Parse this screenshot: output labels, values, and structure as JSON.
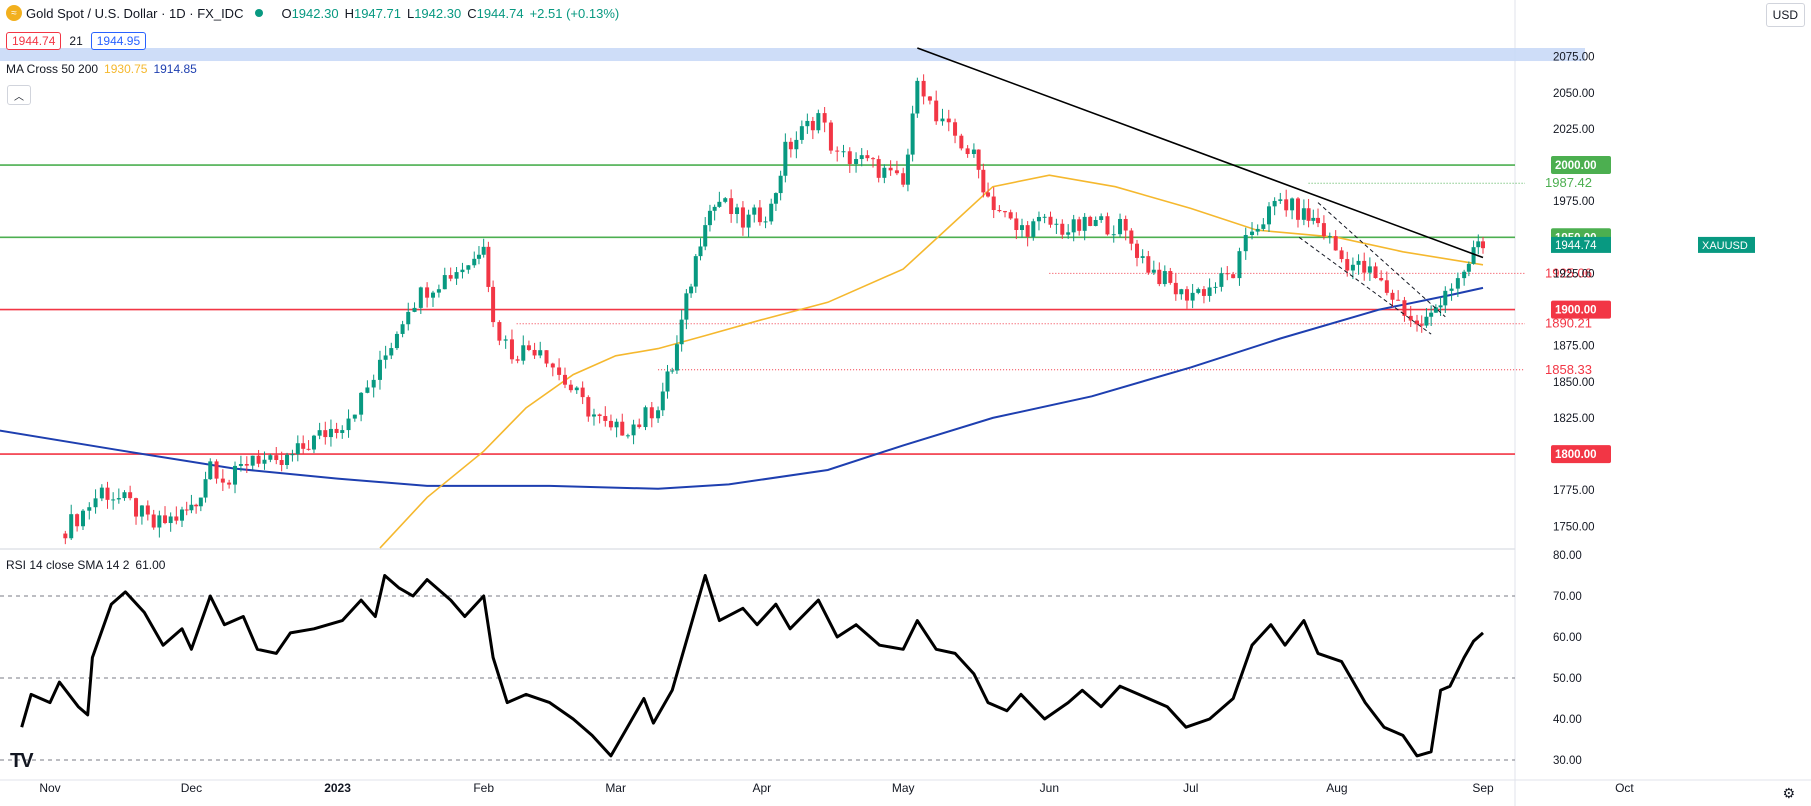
{
  "header": {
    "symbol_title": "Gold Spot / U.S. Dollar · 1D · FX_IDC",
    "ohlc": [
      {
        "label": "O",
        "value": "1942.30"
      },
      {
        "label": "H",
        "value": "1947.71"
      },
      {
        "label": "L",
        "value": "1942.30"
      },
      {
        "label": "C",
        "value": "1944.74"
      }
    ],
    "change": "+2.51 (+0.13%)",
    "bid": "1944.74",
    "spread": "21",
    "ask": "1944.95",
    "ma_label": "MA Cross 50 200",
    "ma50_value": "1930.75",
    "ma200_value": "1914.85",
    "currency_button": "USD",
    "collapse_icon": "chevron-up-icon",
    "settings_icon": "gear-icon",
    "logo_text": "TV"
  },
  "colors": {
    "up": "#089981",
    "down": "#f23645",
    "ma50": "#f5b82e",
    "ma200": "#1e3fb0",
    "resistance_green": "#4caf50",
    "support_red": "#f23645",
    "trendline": "#000000",
    "zone": "#c9d9f7",
    "rsi": "#000000"
  },
  "chart_data": [
    {
      "type": "candlestick",
      "title": "Gold Spot / U.S. Dollar · 1D · FX_IDC",
      "ylim": [
        1735,
        2090
      ],
      "y_ticks": [
        "2075.00",
        "2050.00",
        "2025.00",
        "2000.00",
        "1975.00",
        "1950.00",
        "1925.00",
        "1900.00",
        "1875.00",
        "1850.00",
        "1825.00",
        "1800.00",
        "1775.00",
        "1750.00"
      ],
      "x_ticks": [
        "Nov",
        "Dec",
        "2023",
        "Feb",
        "Mar",
        "Apr",
        "May",
        "Jun",
        "Jul",
        "Aug",
        "Sep",
        "Oct"
      ],
      "last_price_label": "XAUUSD",
      "last_price": "1944.74",
      "horizontal_levels": [
        {
          "value": "2000.00",
          "color": "#4caf50"
        },
        {
          "value": "1950.00",
          "color": "#4caf50"
        },
        {
          "value": "1900.00",
          "color": "#f23645"
        },
        {
          "value": "1800.00",
          "color": "#f23645"
        }
      ],
      "annotation_levels": [
        {
          "value": "1987.42",
          "color": "#4caf50"
        },
        {
          "value": "1925.06",
          "color": "#f23645"
        },
        {
          "value": "1890.21",
          "color": "#f23645"
        },
        {
          "value": "1858.33",
          "color": "#f23645"
        }
      ],
      "zone": {
        "low": 2072,
        "high": 2081
      },
      "trendline": [
        {
          "date": "2023-05-04",
          "price": 2081
        },
        {
          "date": "2023-09-01",
          "price": 1936
        }
      ],
      "channel_upper": [
        {
          "date": "2023-07-28",
          "price": 1974
        },
        {
          "date": "2023-08-24",
          "price": 1895
        }
      ],
      "channel_lower": [
        {
          "date": "2023-07-24",
          "price": 1950
        },
        {
          "date": "2023-08-21",
          "price": 1883
        }
      ],
      "ma50": [
        [
          "2023-01-10",
          1735
        ],
        [
          "2023-01-20",
          1770
        ],
        [
          "2023-02-01",
          1802
        ],
        [
          "2023-02-10",
          1832
        ],
        [
          "2023-02-20",
          1855
        ],
        [
          "2023-03-01",
          1868
        ],
        [
          "2023-03-10",
          1873
        ],
        [
          "2023-03-20",
          1882
        ],
        [
          "2023-04-01",
          1893
        ],
        [
          "2023-04-15",
          1905
        ],
        [
          "2023-05-01",
          1928
        ],
        [
          "2023-05-10",
          1955
        ],
        [
          "2023-05-20",
          1985
        ],
        [
          "2023-06-01",
          1993
        ],
        [
          "2023-06-15",
          1985
        ],
        [
          "2023-07-01",
          1970
        ],
        [
          "2023-07-15",
          1955
        ],
        [
          "2023-08-01",
          1950
        ],
        [
          "2023-08-15",
          1940
        ],
        [
          "2023-09-01",
          1931
        ]
      ],
      "ma200": [
        [
          "2022-10-20",
          1817
        ],
        [
          "2022-11-15",
          1803
        ],
        [
          "2022-12-10",
          1790
        ],
        [
          "2023-01-01",
          1783
        ],
        [
          "2023-01-20",
          1778
        ],
        [
          "2023-02-15",
          1778
        ],
        [
          "2023-03-10",
          1776
        ],
        [
          "2023-03-25",
          1779
        ],
        [
          "2023-04-15",
          1789
        ],
        [
          "2023-05-01",
          1806
        ],
        [
          "2023-05-20",
          1825
        ],
        [
          "2023-06-10",
          1840
        ],
        [
          "2023-07-01",
          1860
        ],
        [
          "2023-07-20",
          1880
        ],
        [
          "2023-08-10",
          1900
        ],
        [
          "2023-08-25",
          1910
        ],
        [
          "2023-09-01",
          1915
        ]
      ],
      "price_path": [
        [
          "2022-11-03",
          1745
        ],
        [
          "2022-11-08",
          1760
        ],
        [
          "2022-11-12",
          1775
        ],
        [
          "2022-11-18",
          1765
        ],
        [
          "2022-11-23",
          1750
        ],
        [
          "2022-11-29",
          1758
        ],
        [
          "2022-12-02",
          1765
        ],
        [
          "2022-12-05",
          1795
        ],
        [
          "2022-12-09",
          1780
        ],
        [
          "2022-12-14",
          1800
        ],
        [
          "2022-12-19",
          1790
        ],
        [
          "2022-12-27",
          1810
        ],
        [
          "2023-01-02",
          1822
        ],
        [
          "2023-01-06",
          1838
        ],
        [
          "2023-01-10",
          1860
        ],
        [
          "2023-01-16",
          1903
        ],
        [
          "2023-01-20",
          1915
        ],
        [
          "2023-01-25",
          1925
        ],
        [
          "2023-01-30",
          1935
        ],
        [
          "2023-02-01",
          1950
        ],
        [
          "2023-02-03",
          1890
        ],
        [
          "2023-02-07",
          1870
        ],
        [
          "2023-02-13",
          1875
        ],
        [
          "2023-02-17",
          1855
        ],
        [
          "2023-02-22",
          1835
        ],
        [
          "2023-02-28",
          1815
        ],
        [
          "2023-03-06",
          1822
        ],
        [
          "2023-03-10",
          1835
        ],
        [
          "2023-03-13",
          1860
        ],
        [
          "2023-03-15",
          1890
        ],
        [
          "2023-03-17",
          1920
        ],
        [
          "2023-03-20",
          1965
        ],
        [
          "2023-03-23",
          1975
        ],
        [
          "2023-03-28",
          1960
        ],
        [
          "2023-04-03",
          1970
        ],
        [
          "2023-04-06",
          2010
        ],
        [
          "2023-04-13",
          2035
        ],
        [
          "2023-04-17",
          2005
        ],
        [
          "2023-04-21",
          2005
        ],
        [
          "2023-04-27",
          1995
        ],
        [
          "2023-05-01",
          1985
        ],
        [
          "2023-05-03",
          2030
        ],
        [
          "2023-05-04",
          2065
        ],
        [
          "2023-05-08",
          2030
        ],
        [
          "2023-05-12",
          2020
        ],
        [
          "2023-05-16",
          2005
        ],
        [
          "2023-05-19",
          1978
        ],
        [
          "2023-05-25",
          1955
        ],
        [
          "2023-05-31",
          1960
        ],
        [
          "2023-06-05",
          1955
        ],
        [
          "2023-06-12",
          1960
        ],
        [
          "2023-06-16",
          1957
        ],
        [
          "2023-06-22",
          1930
        ],
        [
          "2023-06-29",
          1910
        ],
        [
          "2023-07-05",
          1915
        ],
        [
          "2023-07-10",
          1925
        ],
        [
          "2023-07-14",
          1955
        ],
        [
          "2023-07-20",
          1975
        ],
        [
          "2023-07-25",
          1965
        ],
        [
          "2023-07-28",
          1960
        ],
        [
          "2023-08-02",
          1935
        ],
        [
          "2023-08-08",
          1925
        ],
        [
          "2023-08-14",
          1905
        ],
        [
          "2023-08-18",
          1888
        ],
        [
          "2023-08-21",
          1895
        ],
        [
          "2023-08-24",
          1915
        ],
        [
          "2023-08-28",
          1920
        ],
        [
          "2023-08-30",
          1942
        ],
        [
          "2023-09-01",
          1945
        ]
      ]
    },
    {
      "type": "line",
      "title": "RSI 14 close SMA 14 2",
      "value_label": "61.00",
      "ylim": [
        25,
        80
      ],
      "y_ticks": [
        "80.00",
        "70.00",
        "60.00",
        "50.00",
        "40.00",
        "30.00"
      ],
      "dashed_levels": [
        70,
        50,
        30
      ],
      "series": [
        {
          "values": [
            [
              "2022-10-26",
              38
            ],
            [
              "2022-10-28",
              46
            ],
            [
              "2022-11-01",
              44
            ],
            [
              "2022-11-03",
              49
            ],
            [
              "2022-11-07",
              43
            ],
            [
              "2022-11-09",
              41
            ],
            [
              "2022-11-10",
              55
            ],
            [
              "2022-11-14",
              68
            ],
            [
              "2022-11-17",
              71
            ],
            [
              "2022-11-21",
              66
            ],
            [
              "2022-11-25",
              58
            ],
            [
              "2022-11-29",
              62
            ],
            [
              "2022-12-01",
              57
            ],
            [
              "2022-12-05",
              70
            ],
            [
              "2022-12-08",
              63
            ],
            [
              "2022-12-12",
              65
            ],
            [
              "2022-12-15",
              57
            ],
            [
              "2022-12-19",
              56
            ],
            [
              "2022-12-22",
              61
            ],
            [
              "2022-12-27",
              62
            ],
            [
              "2023-01-02",
              64
            ],
            [
              "2023-01-06",
              69
            ],
            [
              "2023-01-09",
              65
            ],
            [
              "2023-01-11",
              75
            ],
            [
              "2023-01-14",
              72
            ],
            [
              "2023-01-17",
              70
            ],
            [
              "2023-01-20",
              74
            ],
            [
              "2023-01-25",
              69
            ],
            [
              "2023-01-28",
              65
            ],
            [
              "2023-02-01",
              70
            ],
            [
              "2023-02-03",
              55
            ],
            [
              "2023-02-06",
              44
            ],
            [
              "2023-02-10",
              46
            ],
            [
              "2023-02-15",
              44
            ],
            [
              "2023-02-20",
              40
            ],
            [
              "2023-02-24",
              36
            ],
            [
              "2023-02-28",
              31
            ],
            [
              "2023-03-03",
              37
            ],
            [
              "2023-03-07",
              45
            ],
            [
              "2023-03-09",
              39
            ],
            [
              "2023-03-13",
              47
            ],
            [
              "2023-03-16",
              59
            ],
            [
              "2023-03-20",
              75
            ],
            [
              "2023-03-23",
              64
            ],
            [
              "2023-03-28",
              67
            ],
            [
              "2023-03-31",
              63
            ],
            [
              "2023-04-04",
              68
            ],
            [
              "2023-04-07",
              62
            ],
            [
              "2023-04-13",
              69
            ],
            [
              "2023-04-17",
              60
            ],
            [
              "2023-04-21",
              63
            ],
            [
              "2023-04-26",
              58
            ],
            [
              "2023-05-01",
              57
            ],
            [
              "2023-05-04",
              64
            ],
            [
              "2023-05-08",
              57
            ],
            [
              "2023-05-12",
              56
            ],
            [
              "2023-05-16",
              51
            ],
            [
              "2023-05-19",
              44
            ],
            [
              "2023-05-23",
              42
            ],
            [
              "2023-05-26",
              46
            ],
            [
              "2023-05-31",
              40
            ],
            [
              "2023-06-05",
              44
            ],
            [
              "2023-06-08",
              47
            ],
            [
              "2023-06-12",
              43
            ],
            [
              "2023-06-16",
              48
            ],
            [
              "2023-06-20",
              46
            ],
            [
              "2023-06-26",
              43
            ],
            [
              "2023-06-30",
              38
            ],
            [
              "2023-07-05",
              40
            ],
            [
              "2023-07-10",
              45
            ],
            [
              "2023-07-14",
              58
            ],
            [
              "2023-07-18",
              63
            ],
            [
              "2023-07-21",
              58
            ],
            [
              "2023-07-25",
              64
            ],
            [
              "2023-07-28",
              56
            ],
            [
              "2023-08-02",
              54
            ],
            [
              "2023-08-07",
              44
            ],
            [
              "2023-08-11",
              38
            ],
            [
              "2023-08-15",
              36
            ],
            [
              "2023-08-18",
              31
            ],
            [
              "2023-08-21",
              32
            ],
            [
              "2023-08-23",
              47
            ],
            [
              "2023-08-25",
              48
            ],
            [
              "2023-08-28",
              55
            ],
            [
              "2023-08-30",
              59
            ],
            [
              "2023-09-01",
              61
            ]
          ]
        }
      ]
    }
  ]
}
